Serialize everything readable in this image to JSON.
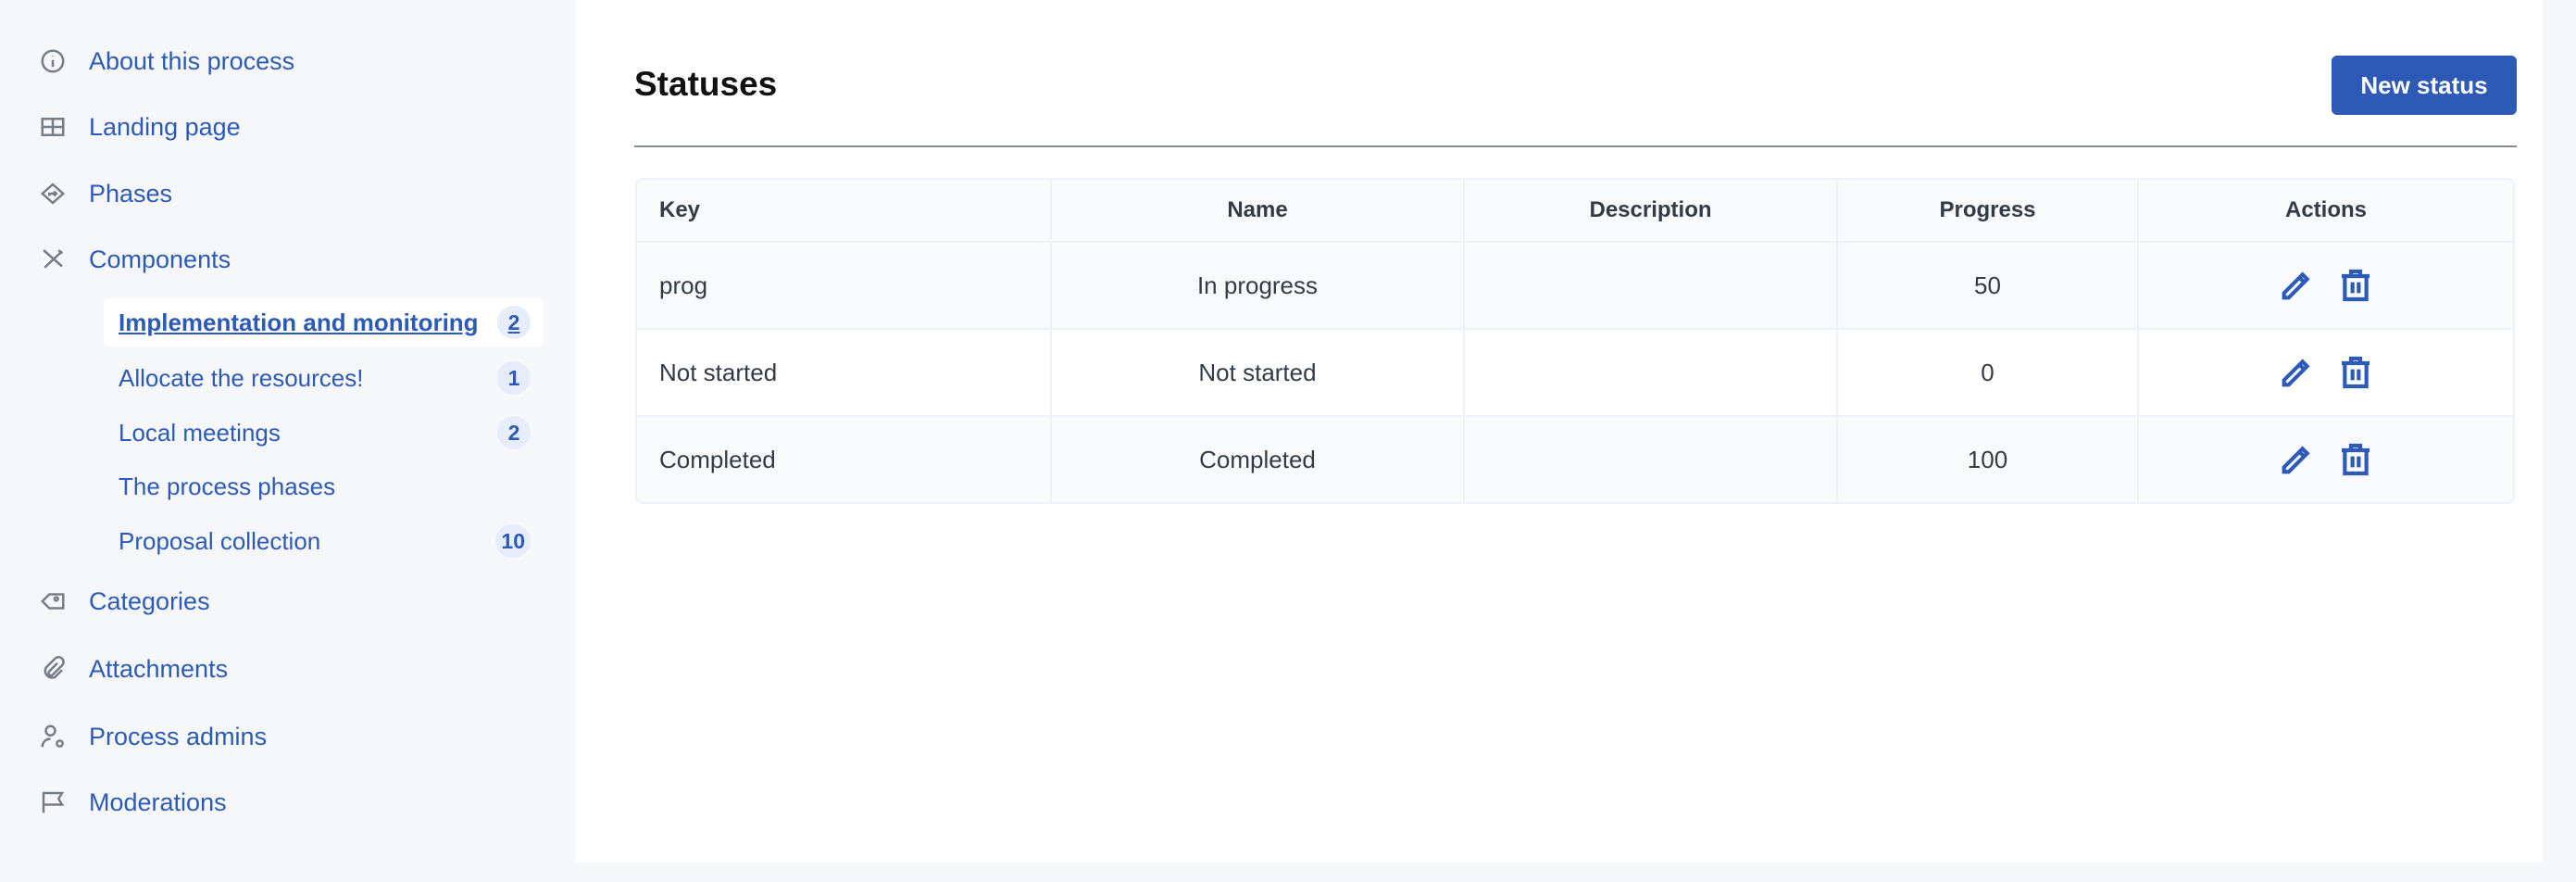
{
  "sidebar": {
    "items": [
      {
        "label": "About this process",
        "icon": "info-icon"
      },
      {
        "label": "Landing page",
        "icon": "layout-icon"
      },
      {
        "label": "Phases",
        "icon": "direction-sign-icon"
      },
      {
        "label": "Components",
        "icon": "tools-icon"
      },
      {
        "label": "Categories",
        "icon": "tag-icon"
      },
      {
        "label": "Attachments",
        "icon": "paperclip-icon"
      },
      {
        "label": "Process admins",
        "icon": "user-settings-icon"
      },
      {
        "label": "Moderations",
        "icon": "flag-icon"
      }
    ],
    "components": [
      {
        "label": "Implementation and monitoring",
        "count": "2",
        "active": true
      },
      {
        "label": "Allocate the resources!",
        "count": "1"
      },
      {
        "label": "Local meetings",
        "count": "2"
      },
      {
        "label": "The process phases",
        "count": null
      },
      {
        "label": "Proposal collection",
        "count": "10"
      }
    ]
  },
  "main": {
    "title": "Statuses",
    "new_button": "New status",
    "table": {
      "headers": [
        "Key",
        "Name",
        "Description",
        "Progress",
        "Actions"
      ],
      "rows": [
        {
          "key": "prog",
          "name": "In progress",
          "description": "",
          "progress": "50"
        },
        {
          "key": "Not started",
          "name": "Not started",
          "description": "",
          "progress": "0"
        },
        {
          "key": "Completed",
          "name": "Completed",
          "description": "",
          "progress": "100"
        }
      ]
    }
  },
  "colors": {
    "accent": "#2c5ab6",
    "sidebar_bg": "#f5f7fa",
    "badge_bg": "#e6edf8"
  }
}
